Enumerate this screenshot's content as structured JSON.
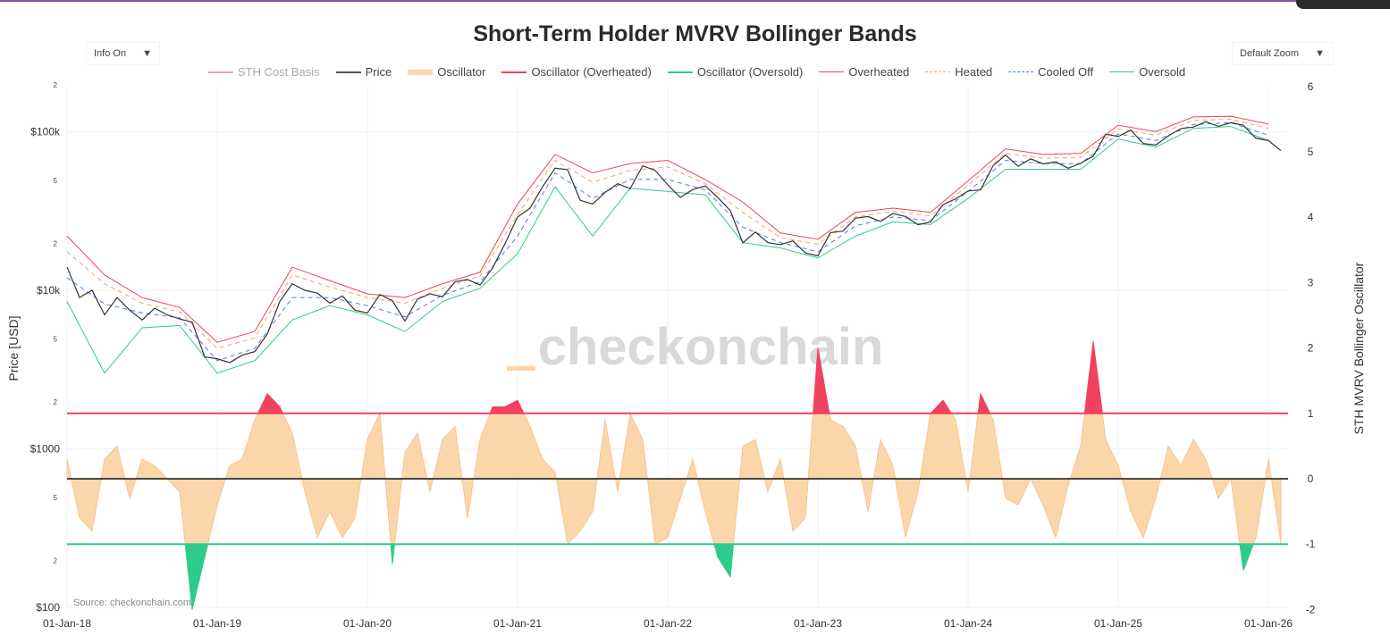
{
  "title": "Short-Term Holder MVRV Bollinger Bands",
  "controls": {
    "info": "Info On",
    "zoom": "Default Zoom"
  },
  "source": "Source: checkonchain.com",
  "watermark": "checkonchain",
  "colors": {
    "price": "#333333",
    "overheated": "#f0425f",
    "heated": "#f4a460",
    "cooled": "#4a7fe0",
    "oversold": "#2ecc8a",
    "osc_fill": "#fcd6ab",
    "osc_line": "#f8c48f",
    "cost_basis": "#f4a0b0"
  },
  "legend": [
    {
      "label": "STH Cost Basis",
      "color": "#f4a0b0",
      "style": "solid",
      "disabled": true
    },
    {
      "label": "Price",
      "color": "#555555",
      "style": "solid"
    },
    {
      "label": "Oscillator",
      "color": "#fcd6ab",
      "style": "fill"
    },
    {
      "label": "Oscillator (Overheated)",
      "color": "#f0425f",
      "style": "solid"
    },
    {
      "label": "Oscillator (Oversold)",
      "color": "#2ecc8a",
      "style": "solid"
    },
    {
      "label": "Overheated",
      "color": "#f0425f",
      "style": "thin"
    },
    {
      "label": "Heated",
      "color": "#f4a460",
      "style": "dash"
    },
    {
      "label": "Cooled Off",
      "color": "#4a7fe0",
      "style": "dash"
    },
    {
      "label": "Oversold",
      "color": "#2ecc8a",
      "style": "thin"
    }
  ],
  "chart_data": {
    "type": "line",
    "title": "Short-Term Holder MVRV Bollinger Bands",
    "ylabel": "Price [USD]",
    "y2label": "STH MVRV Bollinger Oscillator",
    "yscale": "log",
    "ylim": [
      100,
      200000
    ],
    "y2lim": [
      -2,
      6
    ],
    "y_ticks": [
      {
        "v": 200000,
        "t": "2"
      },
      {
        "v": 100000,
        "t": "$100k"
      },
      {
        "v": 50000,
        "t": "5"
      },
      {
        "v": 20000,
        "t": "2"
      },
      {
        "v": 10000,
        "t": "$10k"
      },
      {
        "v": 5000,
        "t": "5"
      },
      {
        "v": 2000,
        "t": "2"
      },
      {
        "v": 1000,
        "t": "$1000"
      },
      {
        "v": 500,
        "t": "5"
      },
      {
        "v": 200,
        "t": "2"
      },
      {
        "v": 100,
        "t": "$100"
      }
    ],
    "y2_ticks": [
      "6",
      "5",
      "4",
      "3",
      "2",
      "1",
      "0",
      "-1",
      "-2"
    ],
    "x_ticks": [
      "01-Jan-18",
      "01-Jan-19",
      "01-Jan-20",
      "01-Jan-21",
      "01-Jan-22",
      "01-Jan-23",
      "01-Jan-24",
      "01-Jan-25",
      "01-Jan-26"
    ],
    "grid": true,
    "legend_position": "top",
    "reference_lines": {
      "overheated": 1,
      "zero": 0,
      "oversold": -1
    },
    "monthly_start": "2018-01",
    "price": [
      14000,
      9000,
      10000,
      7000,
      9000,
      7500,
      6500,
      7700,
      7000,
      6600,
      6300,
      3800,
      3700,
      3500,
      3900,
      4100,
      5300,
      8500,
      11000,
      10000,
      9600,
      8300,
      9200,
      7500,
      7200,
      9400,
      8600,
      6400,
      8800,
      9500,
      9100,
      11300,
      11700,
      10800,
      13800,
      19700,
      29000,
      33000,
      45000,
      58900,
      57700,
      37000,
      35000,
      41500,
      47000,
      43800,
      61000,
      57000,
      46300,
      38500,
      43200,
      45500,
      38500,
      31800,
      19900,
      23300,
      20000,
      19400,
      20500,
      17200,
      16500,
      23100,
      23600,
      28500,
      29200,
      27200,
      30500,
      29200,
      25900,
      27000,
      34700,
      37700,
      42300,
      43000,
      61100,
      71300,
      60600,
      67500,
      62700,
      64600,
      58900,
      63300,
      70200,
      96400,
      93400,
      102400,
      84300,
      82500,
      94200,
      104600,
      107100,
      115700,
      108200,
      114000,
      110000,
      91000,
      88000,
      76000
    ],
    "oscillator": [
      0.3,
      -0.6,
      -0.8,
      0.3,
      0.5,
      -0.3,
      0.3,
      0.2,
      0,
      -0.2,
      -2.0,
      -1.2,
      -0.4,
      0.2,
      0.3,
      0.9,
      1.3,
      1.1,
      0.7,
      -0.2,
      -0.9,
      -0.5,
      -0.9,
      -0.6,
      0.6,
      1.0,
      -1.3,
      0.4,
      0.7,
      -0.2,
      0.6,
      0.8,
      -0.6,
      0.6,
      1.1,
      1.1,
      1.2,
      0.8,
      0.3,
      0.1,
      -1.0,
      -0.8,
      -0.5,
      0.9,
      -0.2,
      1.0,
      0.6,
      -1.0,
      -0.9,
      -0.3,
      0.3,
      -0.5,
      -1.2,
      -1.5,
      0.5,
      0.6,
      -0.2,
      0.3,
      -0.8,
      -0.6,
      2.0,
      0.9,
      0.8,
      0.5,
      -0.5,
      0.6,
      0.2,
      -0.9,
      -0.2,
      1.0,
      1.2,
      0.9,
      -0.2,
      1.3,
      0.9,
      -0.3,
      -0.4,
      0.0,
      -0.4,
      -0.9,
      -0.1,
      0.5,
      2.1,
      0.6,
      0.2,
      -0.5,
      -0.9,
      -0.3,
      0.5,
      0.2,
      0.6,
      0.3,
      -0.3,
      0.0,
      -1.4,
      -0.9,
      0.3,
      -1.0
    ],
    "bands_quarterly_start": "2018-01",
    "overheated": [
      22000,
      12500,
      9000,
      7800,
      4700,
      5500,
      14000,
      11500,
      9500,
      9000,
      11000,
      13000,
      35000,
      72000,
      55000,
      63000,
      66000,
      50000,
      36000,
      23000,
      21000,
      31000,
      33000,
      31000,
      49000,
      78000,
      72000,
      73000,
      110000,
      100000,
      124000,
      125000,
      112000
    ],
    "heated": [
      17500,
      11000,
      8300,
      7300,
      4300,
      5000,
      12500,
      10500,
      9000,
      8300,
      10300,
      12300,
      30000,
      66000,
      48000,
      57000,
      60000,
      47000,
      31000,
      21500,
      19500,
      29000,
      31500,
      29500,
      46000,
      73000,
      68000,
      69000,
      104000,
      95000,
      118000,
      120000,
      105000
    ],
    "cooled_off": [
      12000,
      8200,
      7200,
      6700,
      3600,
      4300,
      9000,
      9000,
      8000,
      6800,
      9300,
      11300,
      22000,
      55000,
      38000,
      50000,
      50000,
      43000,
      25000,
      20000,
      17500,
      25500,
      29000,
      27500,
      42000,
      66000,
      63000,
      63000,
      97000,
      88000,
      111000,
      114000,
      95000
    ],
    "oversold": [
      8500,
      3000,
      5800,
      6000,
      3000,
      3600,
      6500,
      8000,
      7000,
      5500,
      8500,
      10300,
      17000,
      45000,
      22000,
      44000,
      42000,
      40000,
      20000,
      18500,
      16000,
      22000,
      27000,
      26000,
      38000,
      58000,
      58000,
      58000,
      90000,
      80000,
      105000,
      108000,
      88000
    ]
  }
}
